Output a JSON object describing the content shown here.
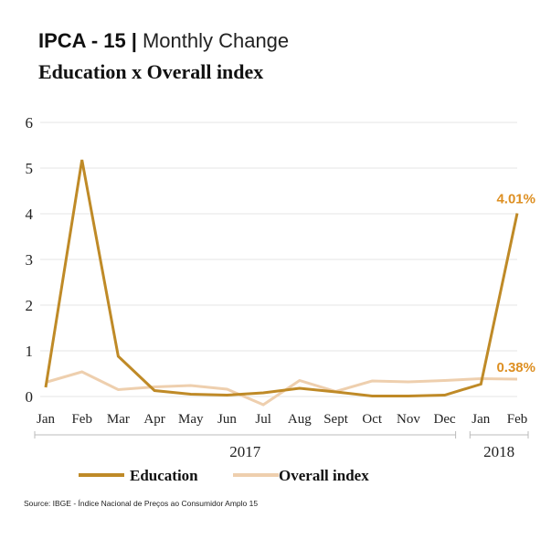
{
  "header": {
    "title": "IPCA - 15",
    "separator": "|",
    "title_suffix": "Monthly Change",
    "subtitle": "Education x Overall index"
  },
  "source": "Source: IBGE - Índice Nacional de Preços ao Consumidor Amplo 15",
  "colors": {
    "education": "#bf8a27",
    "overall": "#eecfae",
    "education_label": "#dd8f22",
    "grid": "#e6e6e6"
  },
  "chart_data": {
    "type": "line",
    "categories": [
      "Jan",
      "Feb",
      "Mar",
      "Apr",
      "May",
      "Jun",
      "Jul",
      "Aug",
      "Sept",
      "Oct",
      "Nov",
      "Dec",
      "Jan",
      "Feb"
    ],
    "series": [
      {
        "name": "Education",
        "values": [
          0.2,
          5.18,
          0.88,
          0.13,
          0.05,
          0.03,
          0.08,
          0.18,
          0.1,
          0.01,
          0.01,
          0.03,
          0.27,
          4.01
        ]
      },
      {
        "name": "Overall index",
        "values": [
          0.31,
          0.54,
          0.15,
          0.21,
          0.24,
          0.16,
          -0.18,
          0.35,
          0.11,
          0.34,
          0.32,
          0.35,
          0.39,
          0.38
        ]
      }
    ],
    "end_labels": [
      "4.01%",
      "0.38%"
    ],
    "year_groups": [
      {
        "label": "2017",
        "from": 0,
        "to": 11
      },
      {
        "label": "2018",
        "from": 12,
        "to": 13
      }
    ],
    "yticks": [
      0,
      1,
      2,
      3,
      4,
      5,
      6
    ],
    "ylim": [
      0,
      6
    ],
    "grid": true,
    "legend": "bottom"
  }
}
